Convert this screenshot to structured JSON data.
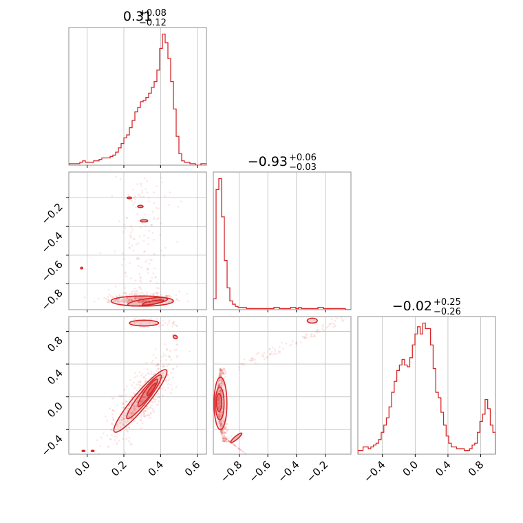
{
  "chart_data": {
    "type": "corner",
    "color": "#d62728",
    "grid": true,
    "parameters": [
      {
        "index": 0,
        "range": [
          -0.1,
          0.65
        ],
        "ticks": [
          "0.0",
          "0.2",
          "0.4",
          "0.6"
        ],
        "tick_values": [
          0.0,
          0.2,
          0.4,
          0.6
        ]
      },
      {
        "index": 1,
        "range": [
          -0.98,
          -0.02
        ],
        "ticks": [
          "-0.8",
          "-0.6",
          "-0.4",
          "-0.2"
        ],
        "tick_values": [
          -0.8,
          -0.6,
          -0.4,
          -0.2
        ]
      },
      {
        "index": 2,
        "range": [
          -0.7,
          0.98
        ],
        "ticks": [
          "-0.4",
          "0.0",
          "0.4",
          "0.8"
        ],
        "tick_values": [
          -0.4,
          0.0,
          0.4,
          0.8
        ]
      }
    ],
    "titles": [
      {
        "value": "0.31",
        "plus": "+0.08",
        "minus": "−0.12"
      },
      {
        "value": "−0.93",
        "plus": "+0.06",
        "minus": "−0.03"
      },
      {
        "value": "−0.02",
        "plus": "+0.25",
        "minus": "−0.26"
      }
    ],
    "histograms": [
      {
        "param": 0,
        "bin_edges_range": [
          -0.1,
          0.65
        ],
        "counts": [
          1,
          1,
          1,
          1,
          2,
          3,
          2,
          2,
          2,
          3,
          3,
          4,
          5,
          5,
          5,
          6,
          7,
          9,
          12,
          15,
          19,
          21,
          26,
          31,
          37,
          40,
          44,
          45,
          47,
          50,
          54,
          58,
          66,
          81,
          91,
          85,
          74,
          58,
          39,
          20,
          8,
          3,
          2,
          2,
          1,
          1,
          0,
          0,
          1,
          1
        ]
      },
      {
        "param": 1,
        "bin_edges_range": [
          -0.98,
          -0.02
        ],
        "counts": [
          10,
          110,
          120,
          85,
          45,
          20,
          8,
          5,
          3,
          2,
          2,
          2,
          1,
          1,
          1,
          1,
          1,
          1,
          1,
          1,
          1,
          1,
          2,
          2,
          1,
          1,
          1,
          1,
          2,
          2,
          1,
          2,
          1,
          1,
          1,
          1,
          1,
          1,
          2,
          2,
          1,
          1,
          1,
          1,
          1,
          1,
          1,
          1,
          0,
          0
        ]
      },
      {
        "param": 2,
        "bin_edges_range": [
          -0.7,
          0.98
        ],
        "counts": [
          2,
          2,
          4,
          4,
          3,
          4,
          5,
          6,
          8,
          12,
          16,
          20,
          26,
          34,
          40,
          46,
          49,
          52,
          49,
          48,
          53,
          60,
          66,
          70,
          66,
          72,
          69,
          69,
          60,
          47,
          34,
          31,
          23,
          16,
          10,
          6,
          4,
          4,
          3,
          3,
          3,
          2,
          2,
          3,
          5,
          6,
          12,
          18,
          22,
          30,
          25,
          16,
          12
        ]
      }
    ],
    "pairs": [
      {
        "x_param": 0,
        "y_param": 1,
        "contour_levels": 4
      },
      {
        "x_param": 0,
        "y_param": 2,
        "contour_levels": 4
      },
      {
        "x_param": 1,
        "y_param": 2,
        "contour_levels": 4
      }
    ]
  }
}
